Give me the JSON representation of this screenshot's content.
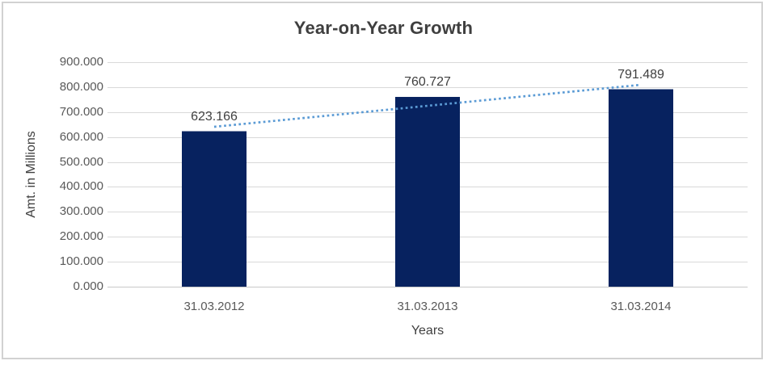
{
  "window": {
    "background": "#FFFFFF",
    "border_color": "#D2D2D2"
  },
  "chart_data": {
    "type": "bar",
    "title": "Year-on-Year Growth",
    "xlabel": "Years",
    "ylabel": "Amt. in Millions",
    "categories": [
      "31.03.2012",
      "31.03.2013",
      "31.03.2014"
    ],
    "values": [
      623.166,
      760.727,
      791.489
    ],
    "value_labels": [
      "623.166",
      "760.727",
      "791.489"
    ],
    "ylim": [
      0,
      900
    ],
    "ytick_step": 100,
    "ytick_labels": [
      "0.000",
      "100.000",
      "200.000",
      "300.000",
      "400.000",
      "500.000",
      "600.000",
      "700.000",
      "800.000",
      "900.000"
    ],
    "grid": true,
    "legend": "none",
    "bar_color": "#07225F",
    "trendline": {
      "type": "linear",
      "style": "dotted",
      "color": "#5B9BD5"
    },
    "colors": {
      "gridline": "#D9D9D9",
      "baseline": "#C8C8C8",
      "tick_label": "#595959",
      "title": "#3F3F3F",
      "axis_title": "#404040",
      "data_label": "#404040"
    }
  }
}
